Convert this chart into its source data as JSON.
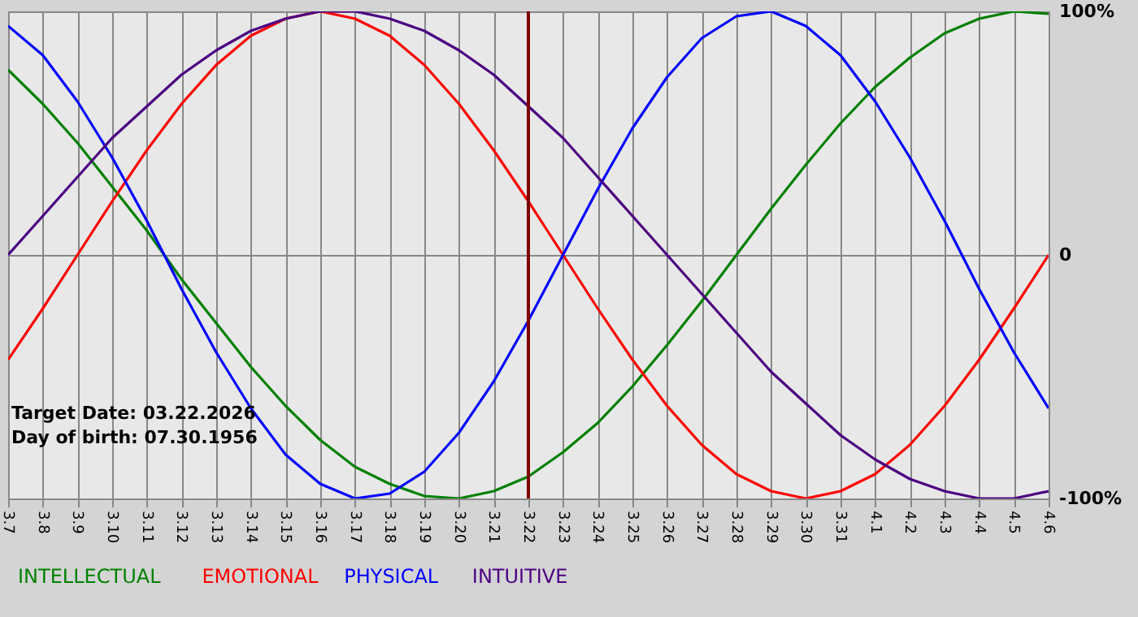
{
  "chart_data": {
    "type": "line",
    "categories": [
      "3.7",
      "3.8",
      "3.9",
      "3.10",
      "3.11",
      "3.12",
      "3.13",
      "3.14",
      "3.15",
      "3.16",
      "3.17",
      "3.18",
      "3.19",
      "3.20",
      "3.21",
      "3.22",
      "3.23",
      "3.24",
      "3.25",
      "3.26",
      "3.27",
      "3.28",
      "3.29",
      "3.30",
      "3.31",
      "4.1",
      "4.2",
      "4.3",
      "4.4",
      "4.5",
      "4.6"
    ],
    "series": [
      {
        "name": "INTELLECTUAL",
        "color": "#008000",
        "values": [
          76,
          62,
          46,
          28,
          10,
          -10,
          -28,
          -46,
          -62,
          -76,
          -87,
          -94,
          -99,
          -100,
          -97,
          -91,
          -81,
          -69,
          -54,
          -37,
          -19,
          0,
          19,
          37,
          54,
          69,
          81,
          91,
          97,
          100,
          99
        ]
      },
      {
        "name": "EMOTIONAL",
        "color": "#ff0000",
        "values": [
          -43,
          -22,
          0,
          22,
          43,
          62,
          78,
          90,
          97,
          100,
          97,
          90,
          78,
          62,
          43,
          22,
          0,
          -22,
          -43,
          -62,
          -78,
          -90,
          -97,
          -100,
          -97,
          -90,
          -78,
          -62,
          -43,
          -22,
          0
        ]
      },
      {
        "name": "PHYSICAL",
        "color": "#0000ff",
        "values": [
          94,
          82,
          63,
          40,
          14,
          -14,
          -40,
          -63,
          -82,
          -94,
          -100,
          -98,
          -89,
          -73,
          -52,
          -27,
          0,
          27,
          52,
          73,
          89,
          98,
          100,
          94,
          82,
          63,
          40,
          14,
          -14,
          -40,
          -63
        ]
      },
      {
        "name": "INTUITIVE",
        "color": "#4b0082",
        "values": [
          0,
          16,
          32,
          48,
          61,
          74,
          84,
          92,
          97,
          100,
          100,
          97,
          92,
          84,
          74,
          61,
          48,
          32,
          16,
          0,
          -16,
          -32,
          -48,
          -61,
          -74,
          -84,
          -92,
          -97,
          -100,
          -100,
          -97
        ]
      }
    ],
    "ylim": [
      -100,
      100
    ],
    "yticks": [
      {
        "value": 100,
        "label": "100%"
      },
      0,
      {
        "value": -100,
        "label": "-100%"
      }
    ],
    "grid": true,
    "ref_lines": [
      {
        "axis": "x",
        "value": "3.22",
        "color": "#800000"
      }
    ],
    "annotations": [
      "Target Date: 03.22.2026",
      "Day of birth: 07.30.1956"
    ]
  }
}
